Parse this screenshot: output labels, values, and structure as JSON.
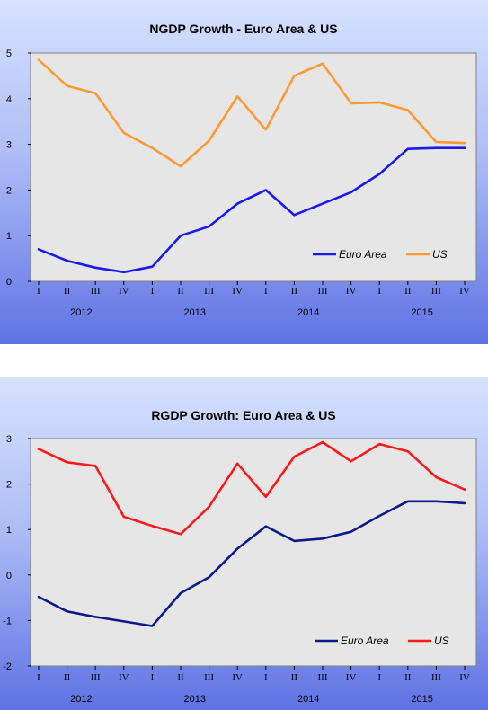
{
  "chart_data": [
    {
      "type": "line",
      "title": "NGDP Growth - Euro Area & US",
      "xlabel": "",
      "ylabel": "",
      "ylim": [
        0,
        5
      ],
      "yticks": [
        "0",
        "1",
        "2",
        "3",
        "4",
        "5"
      ],
      "quarters": [
        "I",
        "II",
        "III",
        "IV",
        "I",
        "II",
        "III",
        "IV",
        "I",
        "II",
        "III",
        "IV",
        "I",
        "II",
        "III",
        "IV"
      ],
      "years": [
        "2012",
        "2013",
        "2014",
        "2015"
      ],
      "legend_position": "bottom-right",
      "grid": false,
      "series": [
        {
          "name": "Euro Area",
          "color": "#1a1aee",
          "values": [
            0.7,
            0.45,
            0.3,
            0.2,
            0.32,
            1.0,
            1.2,
            1.7,
            2.0,
            1.45,
            1.7,
            1.95,
            2.35,
            2.9,
            2.92,
            2.92
          ]
        },
        {
          "name": "US",
          "color": "#ff9933",
          "values": [
            4.85,
            4.28,
            4.12,
            3.25,
            2.92,
            2.52,
            3.08,
            4.05,
            3.32,
            4.5,
            4.77,
            3.9,
            3.92,
            3.75,
            3.05,
            3.03
          ]
        }
      ]
    },
    {
      "type": "line",
      "title": "RGDP Growth: Euro Area & US",
      "xlabel": "",
      "ylabel": "",
      "ylim": [
        -2,
        3
      ],
      "yticks": [
        "-2",
        "-1",
        "0",
        "1",
        "2",
        "3"
      ],
      "quarters": [
        "I",
        "II",
        "III",
        "IV",
        "I",
        "II",
        "III",
        "IV",
        "I",
        "II",
        "III",
        "IV",
        "I",
        "II",
        "III",
        "IV"
      ],
      "years": [
        "2012",
        "2013",
        "2014",
        "2015"
      ],
      "legend_position": "bottom-right",
      "grid": false,
      "series": [
        {
          "name": "Euro Area",
          "color": "#0d1a8c",
          "values": [
            -0.48,
            -0.8,
            -0.92,
            -1.02,
            -1.12,
            -0.4,
            -0.05,
            0.58,
            1.07,
            0.75,
            0.8,
            0.95,
            1.3,
            1.62,
            1.62,
            1.58
          ]
        },
        {
          "name": "US",
          "color": "#ff1a1a",
          "values": [
            2.77,
            2.48,
            2.4,
            1.28,
            1.08,
            0.9,
            1.5,
            2.45,
            1.72,
            2.6,
            2.92,
            2.5,
            2.88,
            2.72,
            2.15,
            1.88
          ]
        }
      ]
    }
  ]
}
